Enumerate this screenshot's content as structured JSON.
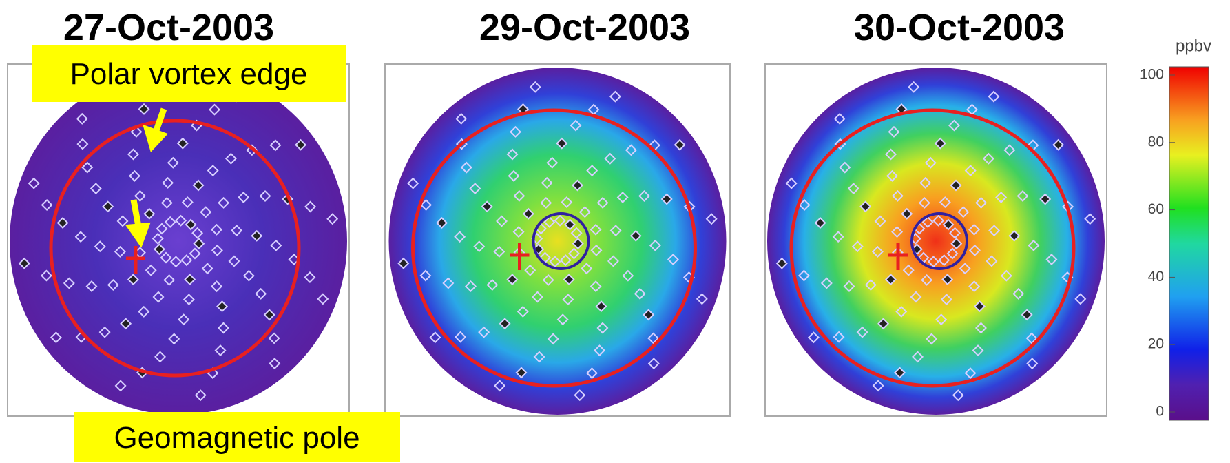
{
  "panels": [
    {
      "title": "27-Oct-2003"
    },
    {
      "title": "29-Oct-2003"
    },
    {
      "title": "30-Oct-2003"
    }
  ],
  "annotations": {
    "vortex_edge": "Polar vortex edge",
    "geomagnetic_pole": "Geomagnetic pole"
  },
  "colorbar": {
    "label": "ppbv",
    "lim": [
      0,
      100
    ],
    "ticks": [
      0,
      20,
      40,
      60,
      80,
      100
    ]
  }
}
